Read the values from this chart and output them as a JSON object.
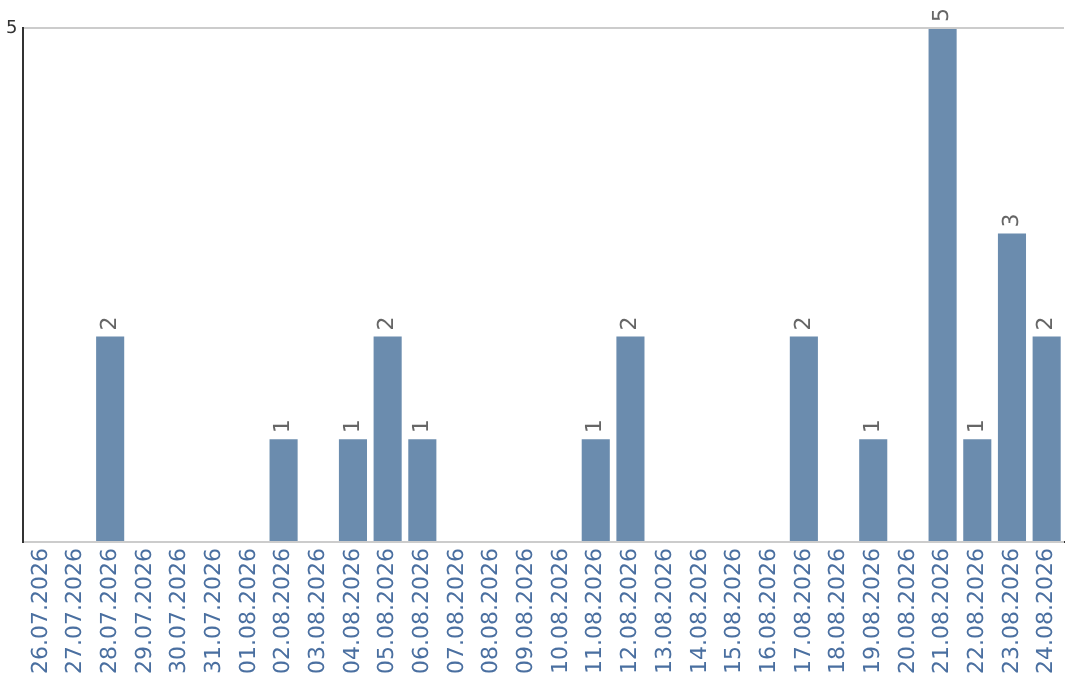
{
  "chart_data": {
    "type": "bar",
    "categories": [
      "26.07.2026",
      "27.07.2026",
      "28.07.2026",
      "29.07.2026",
      "30.07.2026",
      "31.07.2026",
      "01.08.2026",
      "02.08.2026",
      "03.08.2026",
      "04.08.2026",
      "05.08.2026",
      "06.08.2026",
      "07.08.2026",
      "08.08.2026",
      "09.08.2026",
      "10.08.2026",
      "11.08.2026",
      "12.08.2026",
      "13.08.2026",
      "14.08.2026",
      "15.08.2026",
      "16.08.2026",
      "17.08.2026",
      "18.08.2026",
      "19.08.2026",
      "20.08.2026",
      "21.08.2026",
      "22.08.2026",
      "23.08.2026",
      "24.08.2026"
    ],
    "values": [
      0,
      0,
      2,
      0,
      0,
      0,
      0,
      1,
      0,
      1,
      2,
      1,
      0,
      0,
      0,
      0,
      1,
      2,
      0,
      0,
      0,
      0,
      2,
      0,
      1,
      0,
      5,
      1,
      3,
      2
    ],
    "value_labels": [
      null,
      null,
      "2",
      null,
      null,
      null,
      null,
      "1",
      null,
      "1",
      "2",
      "1",
      null,
      null,
      null,
      null,
      "1",
      "2",
      null,
      null,
      null,
      null,
      "2",
      null,
      "1",
      null,
      "5",
      "1",
      "3",
      "2"
    ],
    "color": "#6b8cae",
    "ylim": [
      0,
      5
    ],
    "yticks": [
      {
        "value": 0,
        "label": null
      },
      5
    ],
    "grid": "y",
    "legend": false
  }
}
